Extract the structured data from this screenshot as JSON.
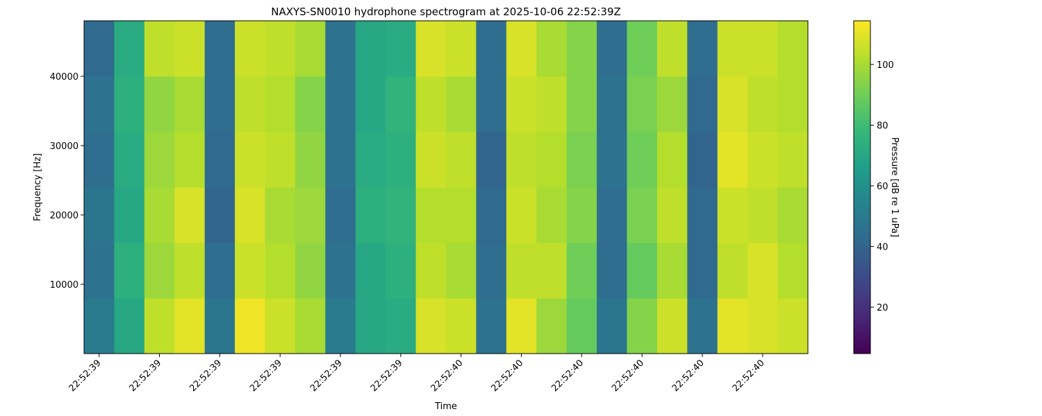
{
  "chart_data": {
    "type": "heatmap",
    "title": "NAXYS-SN0010 hydrophone spectrogram at 2025-10-06 22:52:39Z",
    "xlabel": "Time",
    "ylabel": "Frequency [Hz]",
    "colorbar_label": "Pressure [dB re 1 uPa]",
    "colormap": "viridis",
    "x": [
      0,
      0.5,
      1,
      1.5,
      2,
      2.5,
      3,
      3.5,
      4,
      4.5,
      5,
      5.5,
      6,
      6.5,
      7,
      7.5,
      8,
      8.5,
      9,
      9.5,
      10,
      10.5,
      11,
      11.5
    ],
    "y": [
      4000,
      12000,
      20000,
      28000,
      36000,
      44000
    ],
    "z": [
      [
        50,
        70,
        104,
        110,
        48,
        112,
        106,
        100,
        50,
        70,
        72,
        108,
        106,
        46,
        110,
        98,
        88,
        48,
        94,
        106,
        46,
        110,
        108,
        106
      ],
      [
        46,
        74,
        98,
        104,
        44,
        106,
        102,
        96,
        46,
        70,
        74,
        104,
        100,
        44,
        104,
        104,
        90,
        44,
        88,
        100,
        42,
        104,
        108,
        102
      ],
      [
        48,
        70,
        100,
        108,
        40,
        108,
        100,
        98,
        44,
        74,
        76,
        102,
        102,
        42,
        106,
        100,
        94,
        44,
        92,
        104,
        42,
        106,
        104,
        100
      ],
      [
        44,
        72,
        98,
        102,
        42,
        106,
        104,
        96,
        46,
        72,
        74,
        106,
        104,
        40,
        104,
        102,
        92,
        46,
        90,
        102,
        40,
        110,
        106,
        104
      ],
      [
        46,
        74,
        96,
        100,
        44,
        104,
        102,
        94,
        46,
        70,
        76,
        104,
        100,
        44,
        106,
        104,
        94,
        46,
        92,
        98,
        42,
        108,
        104,
        102
      ],
      [
        42,
        72,
        104,
        106,
        44,
        106,
        104,
        100,
        46,
        70,
        72,
        108,
        106,
        44,
        108,
        100,
        94,
        44,
        90,
        104,
        44,
        106,
        106,
        102
      ]
    ],
    "xlim": [
      -0.25,
      11.75
    ],
    "xticks": [
      {
        "value": 0,
        "label": "22:52:39"
      },
      {
        "value": 1,
        "label": "22:52:39"
      },
      {
        "value": 2,
        "label": "22:52:39"
      },
      {
        "value": 3,
        "label": "22:52:39"
      },
      {
        "value": 4,
        "label": "22:52:39"
      },
      {
        "value": 5,
        "label": "22:52:39"
      },
      {
        "value": 6,
        "label": "22:52:40"
      },
      {
        "value": 7,
        "label": "22:52:40"
      },
      {
        "value": 8,
        "label": "22:52:40"
      },
      {
        "value": 9,
        "label": "22:52:40"
      },
      {
        "value": 10,
        "label": "22:52:40"
      },
      {
        "value": 11,
        "label": "22:52:40"
      }
    ],
    "ylim": [
      0,
      48000
    ],
    "yticks": [
      10000,
      20000,
      30000,
      40000
    ],
    "clim": [
      4.7,
      114.4
    ],
    "cticks": [
      20,
      40,
      60,
      80,
      100
    ]
  }
}
